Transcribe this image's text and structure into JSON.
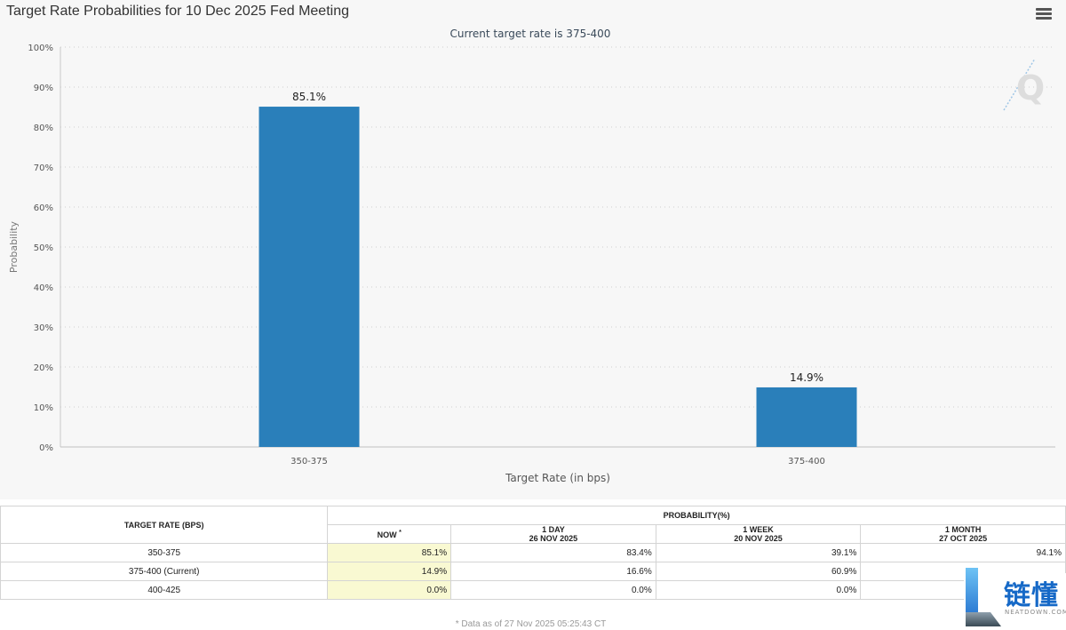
{
  "header": {
    "title": "Target Rate Probabilities for 10 Dec 2025 Fed Meeting",
    "menu_icon": "hamburger-menu-icon"
  },
  "chart_data": {
    "type": "bar",
    "title": "Current target rate is 375-400",
    "categories": [
      "350-375",
      "375-400"
    ],
    "values": [
      85.1,
      14.9
    ],
    "value_labels": [
      "85.1%",
      "14.9%"
    ],
    "xlabel": "Target Rate (in bps)",
    "ylabel": "Probability",
    "ylim": [
      0,
      100
    ],
    "yticks": [
      0,
      10,
      20,
      30,
      40,
      50,
      60,
      70,
      80,
      90,
      100
    ],
    "ytick_labels": [
      "0%",
      "10%",
      "20%",
      "30%",
      "40%",
      "50%",
      "60%",
      "70%",
      "80%",
      "90%",
      "100%"
    ],
    "grid": true,
    "bar_color": "#2a7fba",
    "logo_letter": "Q"
  },
  "table": {
    "col_target": "TARGET RATE (BPS)",
    "col_probability": "PROBABILITY(%)",
    "sub_now": "NOW",
    "sub_now_mark": "*",
    "sub_1day": "1 DAY",
    "sub_1day_date": "26 NOV 2025",
    "sub_1week": "1 WEEK",
    "sub_1week_date": "20 NOV 2025",
    "sub_1month": "1 MONTH",
    "sub_1month_date": "27 OCT 2025",
    "rows": [
      {
        "rate": "350-375",
        "now": "85.1%",
        "day": "83.4%",
        "week": "39.1%",
        "month": "94.1%"
      },
      {
        "rate": "375-400 (Current)",
        "now": "14.9%",
        "day": "16.6%",
        "week": "60.9%",
        "month": ""
      },
      {
        "rate": "400-425",
        "now": "0.0%",
        "day": "0.0%",
        "week": "0.0%",
        "month": ""
      }
    ],
    "footnote": "* Data as of 27 Nov 2025 05:25:43 CT"
  },
  "watermark": {
    "text_cn": "链懂",
    "text_en": "NEATDOWN.COM"
  }
}
